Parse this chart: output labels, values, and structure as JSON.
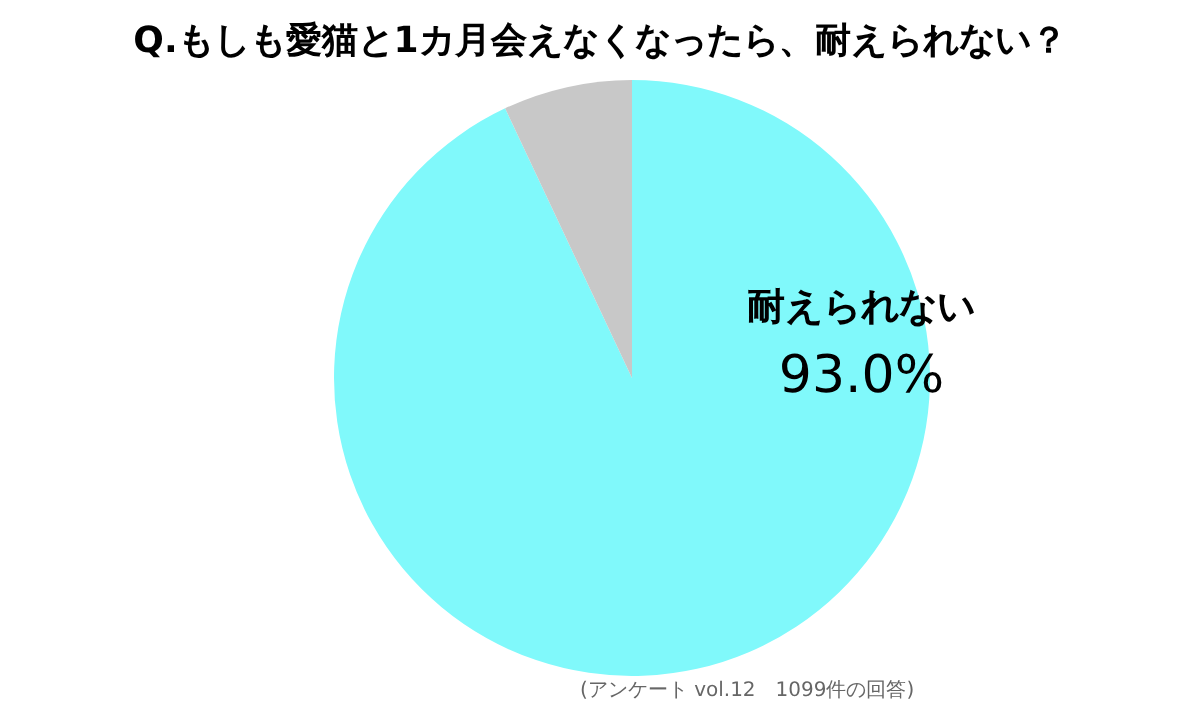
{
  "chart_data": {
    "type": "pie",
    "title": "Q.もしも愛猫と1カ月会えなくなったら、耐えられない？",
    "categories": [
      "耐えられない",
      null
    ],
    "values": [
      93.0,
      7.0
    ],
    "colors": [
      "#80f9fb",
      "#c8c8c8"
    ],
    "value_labels": [
      "93.0%",
      null
    ],
    "legend": false,
    "annotations": [
      "(アンケート vol.12　1099件の回答)"
    ]
  }
}
